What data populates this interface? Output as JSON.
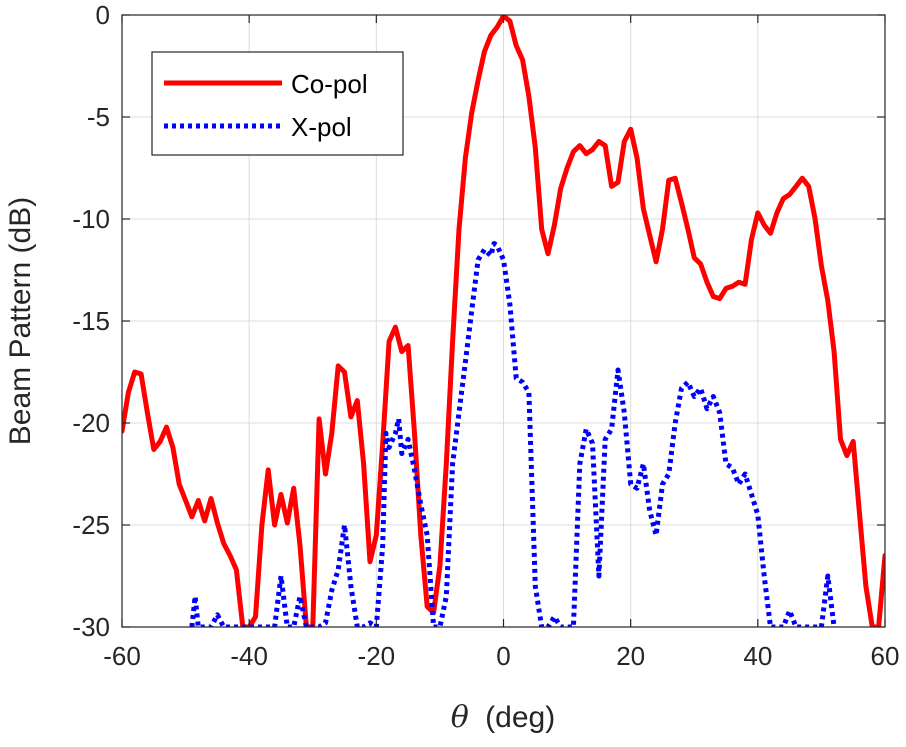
{
  "chart_data": {
    "type": "line",
    "title": "",
    "xlabel_symbol": "θ",
    "xlabel_unit": "(deg)",
    "ylabel": "Beam Pattern (dB)",
    "xlim": [
      -60,
      60
    ],
    "ylim": [
      -30,
      0
    ],
    "x_ticks": [
      -60,
      -40,
      -20,
      0,
      20,
      40,
      60
    ],
    "y_ticks": [
      0,
      -5,
      -10,
      -15,
      -20,
      -25,
      -30
    ],
    "grid": true,
    "legend_position": "top-left",
    "series": [
      {
        "name": "Co-pol",
        "color": "#ff0000",
        "style": "solid",
        "points": [
          [
            -60,
            -20.4
          ],
          [
            -59,
            -18.5
          ],
          [
            -58,
            -17.5
          ],
          [
            -57,
            -17.6
          ],
          [
            -56,
            -19.5
          ],
          [
            -55,
            -21.3
          ],
          [
            -54,
            -20.9
          ],
          [
            -53,
            -20.2
          ],
          [
            -52,
            -21.2
          ],
          [
            -51,
            -23
          ],
          [
            -50,
            -23.8
          ],
          [
            -49,
            -24.6
          ],
          [
            -48,
            -23.8
          ],
          [
            -47,
            -24.8
          ],
          [
            -46,
            -23.7
          ],
          [
            -45,
            -24.9
          ],
          [
            -44,
            -25.9
          ],
          [
            -43,
            -26.5
          ],
          [
            -42,
            -27.2
          ],
          [
            -41,
            -30
          ],
          [
            -40,
            -30
          ],
          [
            -39,
            -29.5
          ],
          [
            -38,
            -25
          ],
          [
            -37,
            -22.3
          ],
          [
            -36,
            -25
          ],
          [
            -35,
            -23.5
          ],
          [
            -34,
            -24.9
          ],
          [
            -33,
            -23.2
          ],
          [
            -32,
            -26
          ],
          [
            -31,
            -30
          ],
          [
            -30,
            -30
          ],
          [
            -29,
            -19.8
          ],
          [
            -28,
            -22.5
          ],
          [
            -27,
            -20.5
          ],
          [
            -26,
            -17.2
          ],
          [
            -25,
            -17.5
          ],
          [
            -24,
            -19.7
          ],
          [
            -23,
            -18.9
          ],
          [
            -22,
            -22
          ],
          [
            -21,
            -26.8
          ],
          [
            -20,
            -25.5
          ],
          [
            -19,
            -21
          ],
          [
            -18,
            -16
          ],
          [
            -17,
            -15.3
          ],
          [
            -16,
            -16.5
          ],
          [
            -15,
            -16.2
          ],
          [
            -14,
            -20.5
          ],
          [
            -13,
            -25.5
          ],
          [
            -12,
            -29
          ],
          [
            -11,
            -29.3
          ],
          [
            -10,
            -27
          ],
          [
            -9,
            -22
          ],
          [
            -8,
            -16
          ],
          [
            -7,
            -10.5
          ],
          [
            -6,
            -7
          ],
          [
            -5,
            -4.8
          ],
          [
            -4,
            -3.2
          ],
          [
            -3,
            -1.8
          ],
          [
            -2,
            -1
          ],
          [
            -1,
            -0.6
          ],
          [
            0,
            -0.05
          ],
          [
            1,
            -0.3
          ],
          [
            2,
            -1.5
          ],
          [
            3,
            -2.2
          ],
          [
            4,
            -4
          ],
          [
            5,
            -6.5
          ],
          [
            6,
            -10.5
          ],
          [
            7,
            -11.7
          ],
          [
            8,
            -10.3
          ],
          [
            9,
            -8.5
          ],
          [
            10,
            -7.5
          ],
          [
            11,
            -6.7
          ],
          [
            12,
            -6.4
          ],
          [
            13,
            -6.8
          ],
          [
            14,
            -6.6
          ],
          [
            15,
            -6.2
          ],
          [
            16,
            -6.4
          ],
          [
            17,
            -8.4
          ],
          [
            18,
            -8.2
          ],
          [
            19,
            -6.2
          ],
          [
            20,
            -5.6
          ],
          [
            21,
            -7
          ],
          [
            22,
            -9.5
          ],
          [
            23,
            -10.8
          ],
          [
            24,
            -12.1
          ],
          [
            25,
            -10.5
          ],
          [
            26,
            -8.1
          ],
          [
            27,
            -8
          ],
          [
            28,
            -9.2
          ],
          [
            29,
            -10.5
          ],
          [
            30,
            -11.9
          ],
          [
            31,
            -12.2
          ],
          [
            32,
            -13.1
          ],
          [
            33,
            -13.8
          ],
          [
            34,
            -13.9
          ],
          [
            35,
            -13.4
          ],
          [
            36,
            -13.3
          ],
          [
            37,
            -13.1
          ],
          [
            38,
            -13.2
          ],
          [
            39,
            -11
          ],
          [
            40,
            -9.7
          ],
          [
            41,
            -10.3
          ],
          [
            42,
            -10.7
          ],
          [
            43,
            -9.7
          ],
          [
            44,
            -9
          ],
          [
            45,
            -8.8
          ],
          [
            46,
            -8.4
          ],
          [
            47,
            -8
          ],
          [
            48,
            -8.4
          ],
          [
            49,
            -10
          ],
          [
            50,
            -12.3
          ],
          [
            51,
            -14
          ],
          [
            52,
            -16.5
          ],
          [
            53,
            -20.8
          ],
          [
            54,
            -21.6
          ],
          [
            55,
            -20.9
          ],
          [
            56,
            -24.5
          ],
          [
            57,
            -28
          ],
          [
            58,
            -30
          ],
          [
            59,
            -30
          ],
          [
            60,
            -26.5
          ]
        ]
      },
      {
        "name": "X-pol",
        "color": "#0000ff",
        "style": "dotted",
        "points": [
          [
            -49,
            -30
          ],
          [
            -48.5,
            -28.5
          ],
          [
            -48,
            -30
          ],
          [
            -47,
            -30
          ],
          [
            -46,
            -30
          ],
          [
            -45,
            -29.4
          ],
          [
            -44,
            -30
          ],
          [
            -36,
            -30
          ],
          [
            -35,
            -27.5
          ],
          [
            -34,
            -30
          ],
          [
            -33,
            -30
          ],
          [
            -32,
            -28.5
          ],
          [
            -31,
            -30
          ],
          [
            -30,
            -30
          ],
          [
            -29,
            -30
          ],
          [
            -28,
            -29.8
          ],
          [
            -27,
            -28.2
          ],
          [
            -26,
            -27.2
          ],
          [
            -25,
            -25
          ],
          [
            -24,
            -28
          ],
          [
            -23,
            -30
          ],
          [
            -22,
            -30
          ],
          [
            -21,
            -29.8
          ],
          [
            -20,
            -30
          ],
          [
            -19,
            -26
          ],
          [
            -18.5,
            -20.5
          ],
          [
            -18,
            -21.2
          ],
          [
            -17,
            -20.5
          ],
          [
            -16.5,
            -19.8
          ],
          [
            -16,
            -21.5
          ],
          [
            -15,
            -20.8
          ],
          [
            -14,
            -22.3
          ],
          [
            -13,
            -24
          ],
          [
            -12,
            -25.5
          ],
          [
            -11,
            -30
          ],
          [
            -10,
            -30
          ],
          [
            -9,
            -28.5
          ],
          [
            -8,
            -22
          ],
          [
            -7,
            -19.5
          ],
          [
            -6,
            -17
          ],
          [
            -5,
            -14.5
          ],
          [
            -4,
            -12
          ],
          [
            -3,
            -11.5
          ],
          [
            -2,
            -11.8
          ],
          [
            -1.5,
            -11.2
          ],
          [
            -1,
            -11.3
          ],
          [
            0,
            -12
          ],
          [
            1,
            -14.2
          ],
          [
            2,
            -17.8
          ],
          [
            3,
            -18
          ],
          [
            4,
            -18.5
          ],
          [
            5,
            -28
          ],
          [
            6,
            -30
          ],
          [
            7,
            -30
          ],
          [
            8,
            -29.5
          ],
          [
            9,
            -30
          ],
          [
            10,
            -30
          ],
          [
            11,
            -30
          ],
          [
            12,
            -22
          ],
          [
            13,
            -20.3
          ],
          [
            14,
            -21
          ],
          [
            15,
            -27.5
          ],
          [
            16,
            -20.8
          ],
          [
            17,
            -20.3
          ],
          [
            18,
            -17.4
          ],
          [
            19,
            -19.5
          ],
          [
            20,
            -23
          ],
          [
            21,
            -23.2
          ],
          [
            22,
            -22
          ],
          [
            23,
            -24.3
          ],
          [
            24,
            -25.5
          ],
          [
            25,
            -23
          ],
          [
            26,
            -22.5
          ],
          [
            27,
            -20
          ],
          [
            28,
            -18.3
          ],
          [
            29,
            -18
          ],
          [
            30,
            -18.7
          ],
          [
            31,
            -18.3
          ],
          [
            32,
            -19.3
          ],
          [
            33,
            -18.7
          ],
          [
            34,
            -19.5
          ],
          [
            35,
            -22
          ],
          [
            36,
            -22.2
          ],
          [
            37,
            -23
          ],
          [
            38,
            -22.5
          ],
          [
            39,
            -23.5
          ],
          [
            40,
            -24.5
          ],
          [
            41,
            -27.5
          ],
          [
            42,
            -30
          ],
          [
            44,
            -30
          ],
          [
            45,
            -29.2
          ],
          [
            46,
            -30
          ],
          [
            50,
            -30
          ],
          [
            51,
            -27.5
          ],
          [
            52,
            -30
          ]
        ]
      }
    ]
  }
}
